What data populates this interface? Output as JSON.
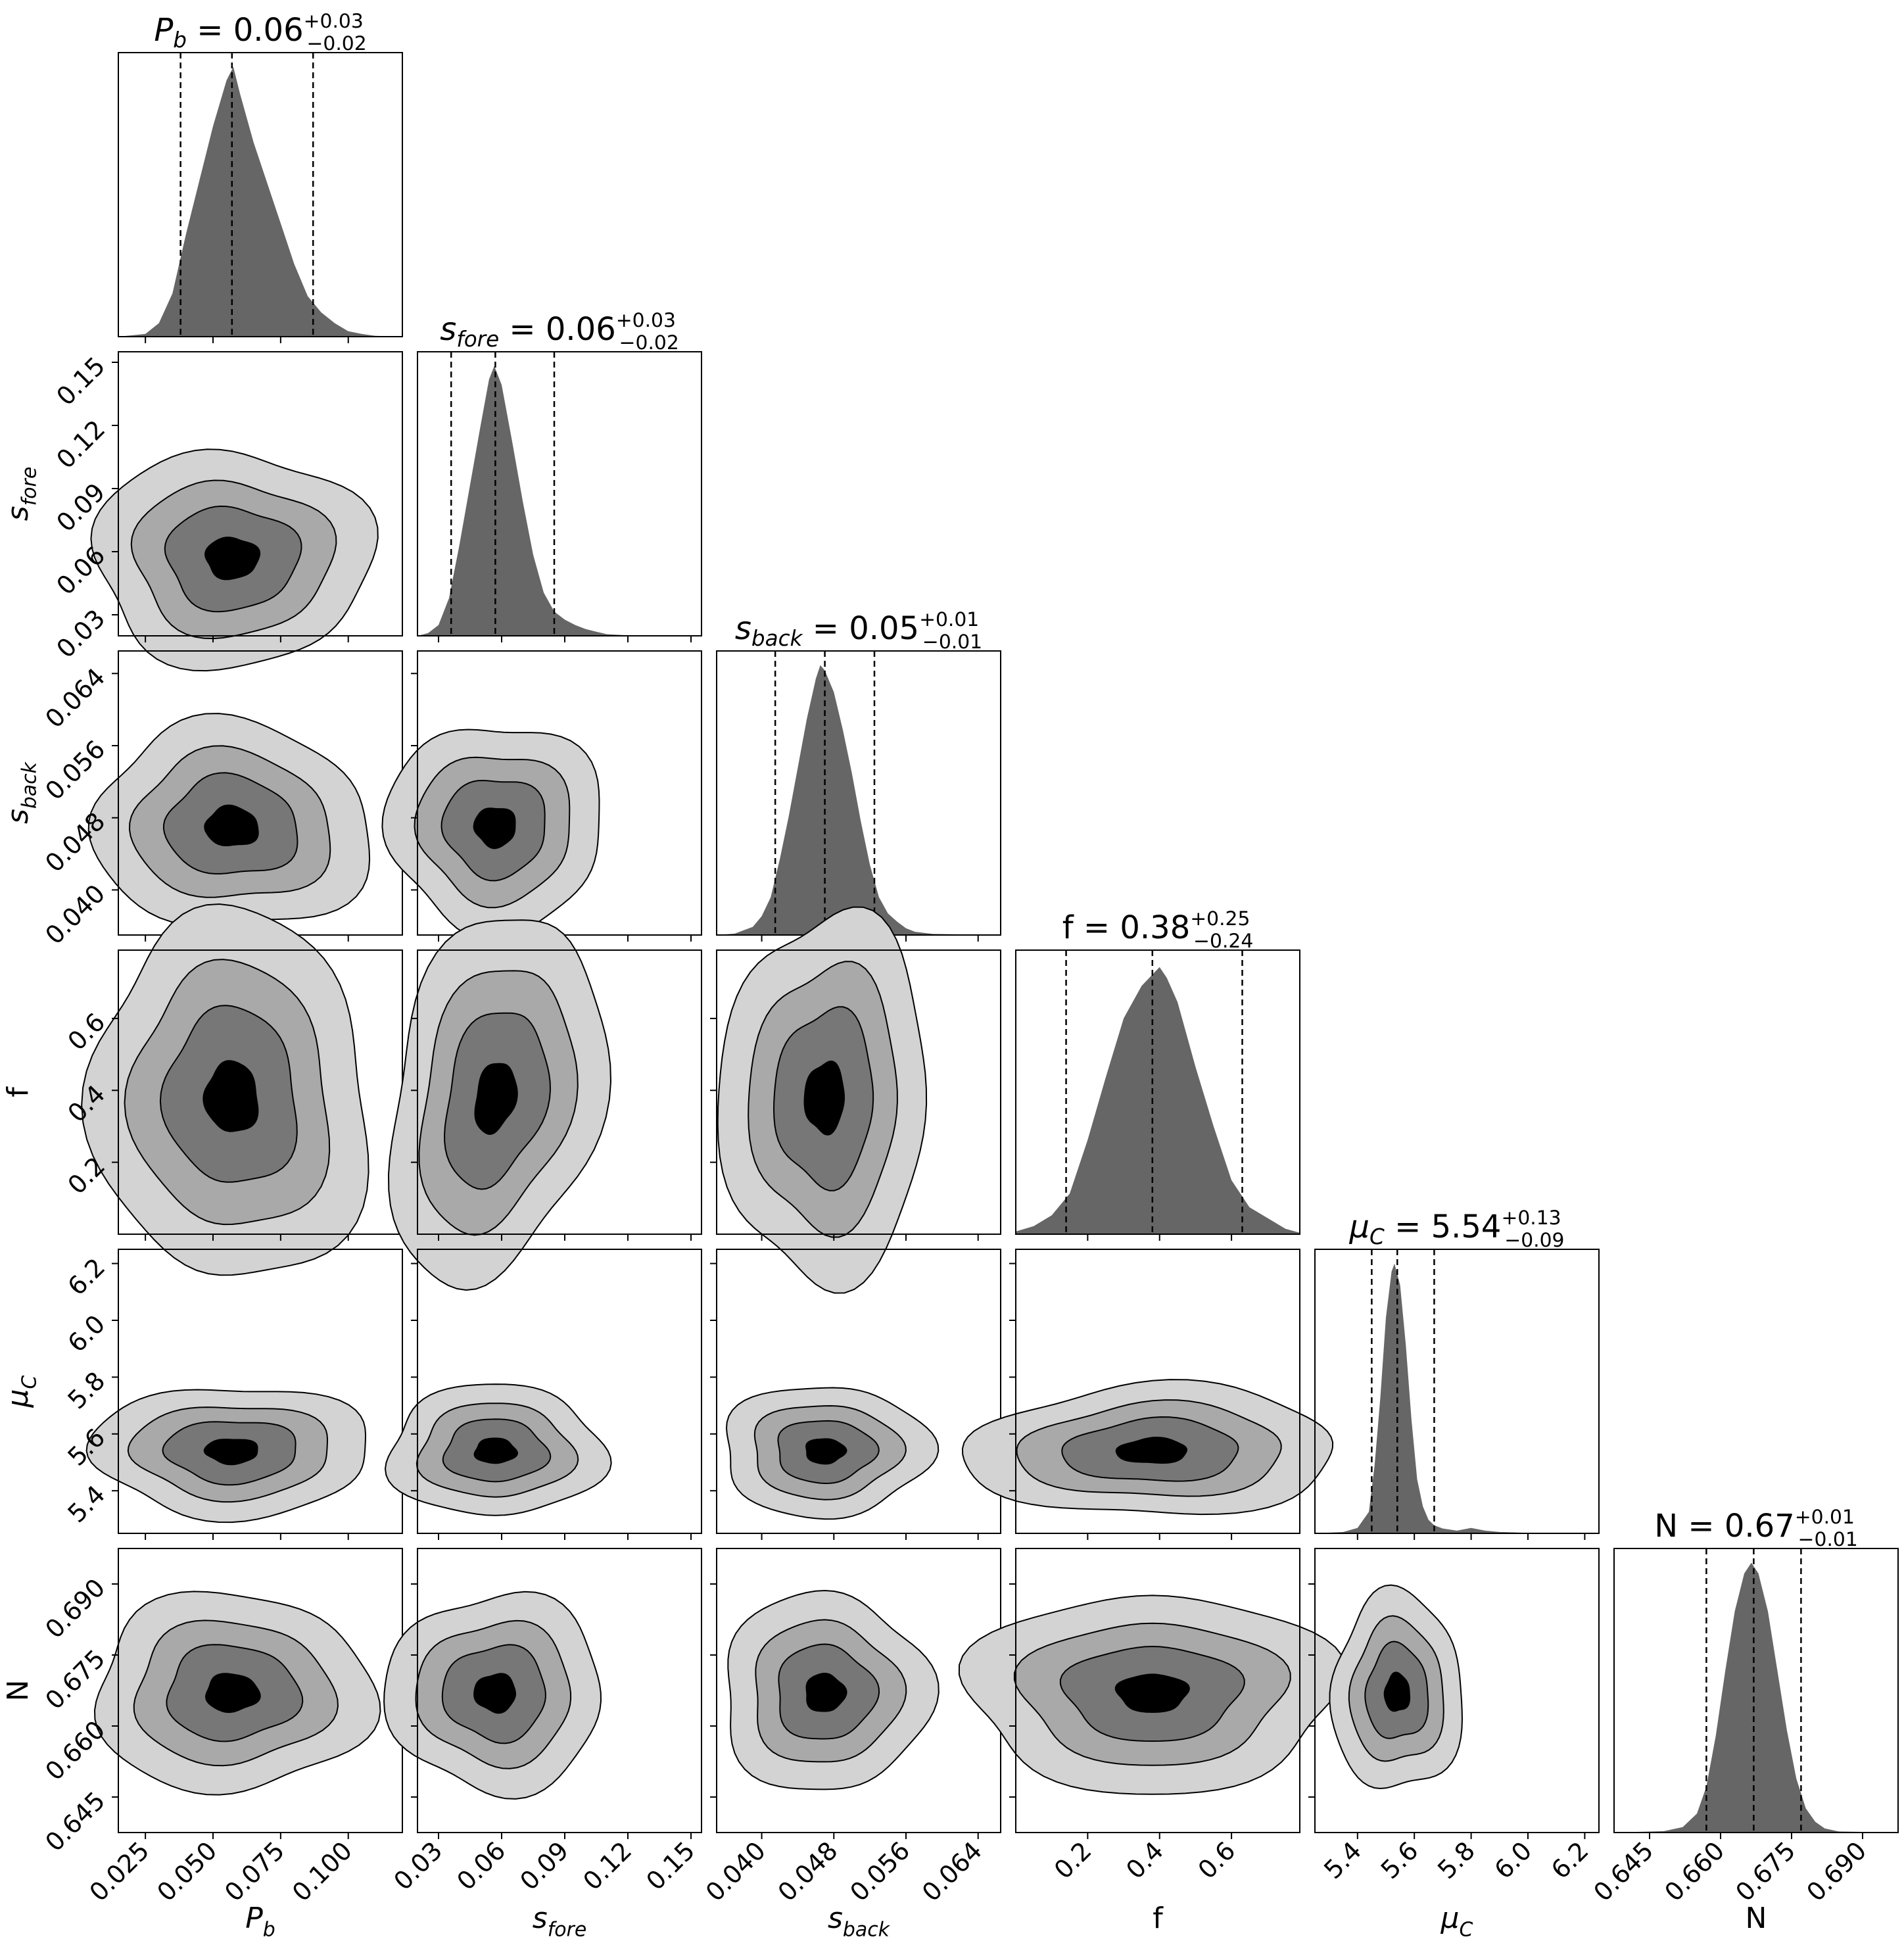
{
  "chart_data": {
    "type": "corner",
    "parameters": [
      {
        "key": "Pb",
        "label": "P",
        "sub": "b",
        "italic": true,
        "median": 0.057,
        "q16": 0.038,
        "q84": 0.087,
        "summary": {
          "value": "0.06",
          "plus": "+0.03",
          "minus": "−0.02"
        },
        "range": [
          0.015,
          0.12
        ],
        "ticks": [
          0.025,
          0.05,
          0.075,
          0.1
        ],
        "tick_labels": [
          "0.025",
          "0.050",
          "0.075",
          "0.100"
        ],
        "hist": [
          [
            0.015,
            0
          ],
          [
            0.025,
            0.01
          ],
          [
            0.03,
            0.05
          ],
          [
            0.035,
            0.16
          ],
          [
            0.04,
            0.38
          ],
          [
            0.045,
            0.58
          ],
          [
            0.05,
            0.78
          ],
          [
            0.055,
            0.95
          ],
          [
            0.0575,
            1.0
          ],
          [
            0.06,
            0.9
          ],
          [
            0.065,
            0.72
          ],
          [
            0.07,
            0.57
          ],
          [
            0.075,
            0.42
          ],
          [
            0.08,
            0.27
          ],
          [
            0.085,
            0.15
          ],
          [
            0.09,
            0.09
          ],
          [
            0.095,
            0.05
          ],
          [
            0.1,
            0.02
          ],
          [
            0.105,
            0.01
          ],
          [
            0.11,
            0.003
          ],
          [
            0.12,
            0
          ]
        ]
      },
      {
        "key": "sfore",
        "label": "s",
        "sub": "fore",
        "italic": true,
        "median": 0.057,
        "q16": 0.036,
        "q84": 0.085,
        "summary": {
          "value": "0.06",
          "plus": "+0.03",
          "minus": "−0.02"
        },
        "range": [
          0.02,
          0.155
        ],
        "ticks": [
          0.03,
          0.06,
          0.09,
          0.12,
          0.15
        ],
        "tick_labels": [
          "0.03",
          "0.06",
          "0.09",
          "0.12",
          "0.15"
        ],
        "hist": [
          [
            0.02,
            0
          ],
          [
            0.025,
            0.01
          ],
          [
            0.03,
            0.04
          ],
          [
            0.035,
            0.14
          ],
          [
            0.04,
            0.34
          ],
          [
            0.045,
            0.56
          ],
          [
            0.05,
            0.78
          ],
          [
            0.054,
            0.95
          ],
          [
            0.0565,
            1.0
          ],
          [
            0.06,
            0.93
          ],
          [
            0.065,
            0.72
          ],
          [
            0.07,
            0.5
          ],
          [
            0.075,
            0.3
          ],
          [
            0.08,
            0.16
          ],
          [
            0.085,
            0.09
          ],
          [
            0.09,
            0.06
          ],
          [
            0.095,
            0.04
          ],
          [
            0.1,
            0.025
          ],
          [
            0.105,
            0.015
          ],
          [
            0.11,
            0.006
          ],
          [
            0.12,
            0.002
          ],
          [
            0.155,
            0
          ]
        ]
      },
      {
        "key": "sback",
        "label": "s",
        "sub": "back",
        "italic": true,
        "median": 0.047,
        "q16": 0.0415,
        "q84": 0.0525,
        "summary": {
          "value": "0.05",
          "plus": "+0.01",
          "minus": "−0.01"
        },
        "range": [
          0.035,
          0.0665
        ],
        "ticks": [
          0.04,
          0.048,
          0.056,
          0.064
        ],
        "tick_labels": [
          "0.040",
          "0.048",
          "0.056",
          "0.064"
        ],
        "hist": [
          [
            0.035,
            0
          ],
          [
            0.037,
            0.005
          ],
          [
            0.039,
            0.03
          ],
          [
            0.04,
            0.07
          ],
          [
            0.041,
            0.14
          ],
          [
            0.042,
            0.28
          ],
          [
            0.043,
            0.44
          ],
          [
            0.044,
            0.62
          ],
          [
            0.045,
            0.8
          ],
          [
            0.046,
            0.95
          ],
          [
            0.0465,
            1.0
          ],
          [
            0.047,
            0.98
          ],
          [
            0.048,
            0.9
          ],
          [
            0.049,
            0.76
          ],
          [
            0.05,
            0.6
          ],
          [
            0.051,
            0.42
          ],
          [
            0.052,
            0.26
          ],
          [
            0.053,
            0.14
          ],
          [
            0.054,
            0.08
          ],
          [
            0.055,
            0.05
          ],
          [
            0.056,
            0.025
          ],
          [
            0.057,
            0.012
          ],
          [
            0.059,
            0.004
          ],
          [
            0.0665,
            0
          ]
        ]
      },
      {
        "key": "f",
        "label": "f",
        "sub": "",
        "italic": false,
        "median": 0.38,
        "q16": 0.14,
        "q84": 0.63,
        "summary": {
          "value": "0.38",
          "plus": "+0.25",
          "minus": "−0.24"
        },
        "range": [
          0.0,
          0.79
        ],
        "ticks": [
          0.2,
          0.4,
          0.6
        ],
        "tick_labels": [
          "0.2",
          "0.4",
          "0.6"
        ],
        "hist": [
          [
            0.0,
            0.01
          ],
          [
            0.05,
            0.03
          ],
          [
            0.1,
            0.07
          ],
          [
            0.15,
            0.15
          ],
          [
            0.2,
            0.35
          ],
          [
            0.25,
            0.58
          ],
          [
            0.3,
            0.8
          ],
          [
            0.35,
            0.92
          ],
          [
            0.4,
            0.99
          ],
          [
            0.42,
            0.95
          ],
          [
            0.45,
            0.86
          ],
          [
            0.5,
            0.62
          ],
          [
            0.55,
            0.4
          ],
          [
            0.6,
            0.2
          ],
          [
            0.65,
            0.1
          ],
          [
            0.7,
            0.06
          ],
          [
            0.75,
            0.02
          ],
          [
            0.79,
            0.005
          ]
        ]
      },
      {
        "key": "muC",
        "label": "μ",
        "sub": "C",
        "italic": true,
        "median": 5.54,
        "q16": 5.45,
        "q84": 5.67,
        "summary": {
          "value": "5.54",
          "plus": "+0.13",
          "minus": "−0.09"
        },
        "range": [
          5.25,
          6.25
        ],
        "ticks": [
          5.4,
          5.6,
          5.8,
          6.0,
          6.2
        ],
        "tick_labels": [
          "5.4",
          "5.6",
          "5.8",
          "6.0",
          "6.2"
        ],
        "hist": [
          [
            5.25,
            0
          ],
          [
            5.35,
            0.005
          ],
          [
            5.4,
            0.02
          ],
          [
            5.44,
            0.08
          ],
          [
            5.46,
            0.25
          ],
          [
            5.48,
            0.5
          ],
          [
            5.5,
            0.8
          ],
          [
            5.52,
            0.97
          ],
          [
            5.53,
            1.0
          ],
          [
            5.55,
            0.92
          ],
          [
            5.57,
            0.7
          ],
          [
            5.59,
            0.42
          ],
          [
            5.61,
            0.2
          ],
          [
            5.63,
            0.1
          ],
          [
            5.65,
            0.05
          ],
          [
            5.67,
            0.03
          ],
          [
            5.7,
            0.018
          ],
          [
            5.75,
            0.01
          ],
          [
            5.8,
            0.02
          ],
          [
            5.85,
            0.01
          ],
          [
            5.9,
            0.005
          ],
          [
            6.0,
            0.002
          ],
          [
            6.25,
            0
          ]
        ]
      },
      {
        "key": "N",
        "label": "N",
        "sub": "",
        "italic": false,
        "median": 0.667,
        "q16": 0.657,
        "q84": 0.677,
        "summary": {
          "value": "0.67",
          "plus": "+0.01",
          "minus": "−0.01"
        },
        "range": [
          0.6375,
          0.6975
        ],
        "ticks": [
          0.645,
          0.66,
          0.675,
          0.69
        ],
        "tick_labels": [
          "0.645",
          "0.660",
          "0.675",
          "0.690"
        ],
        "hist": [
          [
            0.6375,
            0
          ],
          [
            0.648,
            0.005
          ],
          [
            0.652,
            0.02
          ],
          [
            0.655,
            0.07
          ],
          [
            0.657,
            0.17
          ],
          [
            0.659,
            0.36
          ],
          [
            0.661,
            0.6
          ],
          [
            0.663,
            0.82
          ],
          [
            0.665,
            0.96
          ],
          [
            0.6665,
            1.0
          ],
          [
            0.668,
            0.96
          ],
          [
            0.67,
            0.82
          ],
          [
            0.672,
            0.6
          ],
          [
            0.674,
            0.38
          ],
          [
            0.676,
            0.2
          ],
          [
            0.678,
            0.09
          ],
          [
            0.68,
            0.04
          ],
          [
            0.682,
            0.015
          ],
          [
            0.685,
            0.004
          ],
          [
            0.6975,
            0
          ]
        ]
      }
    ],
    "correlation": [
      [
        1,
        0,
        0,
        0,
        0,
        0
      ],
      [
        0,
        1,
        0,
        0,
        0,
        0
      ],
      [
        -0.05,
        0,
        1,
        0,
        0,
        0
      ],
      [
        -0.05,
        0.25,
        0.05,
        1,
        0,
        0
      ],
      [
        0,
        0,
        0,
        0.05,
        1,
        0
      ],
      [
        0,
        0,
        0,
        0,
        0,
        1
      ]
    ],
    "contour_levels": [
      "#d3d3d3",
      "#a9a9a9",
      "#777777",
      "#000000"
    ],
    "hist_color": "#666666",
    "grid": false
  }
}
